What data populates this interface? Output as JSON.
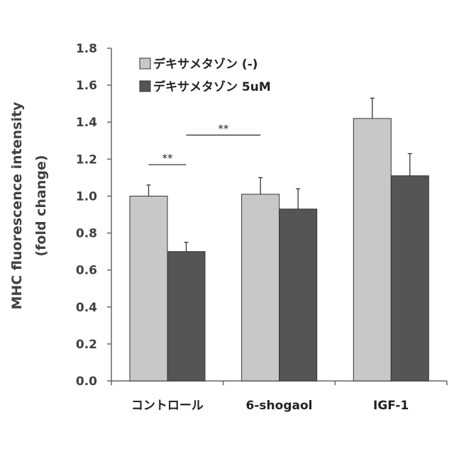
{
  "chart_data": {
    "type": "bar",
    "ylabel_lines": [
      "MHC fluorescence intensity",
      "(fold change)"
    ],
    "xlabel": "",
    "ylim": [
      0,
      1.8
    ],
    "ytick_step": 0.2,
    "ytick_labels": [
      "0.0",
      "0.2",
      "0.4",
      "0.6",
      "0.8",
      "1.0",
      "1.2",
      "1.4",
      "1.6",
      "1.8"
    ],
    "categories": [
      "コントロール",
      "6-shogaol",
      "IGF-1"
    ],
    "series": [
      {
        "name": "デキサメタゾン (-)",
        "color": "#c8c8c8",
        "values": [
          1.0,
          1.01,
          1.42
        ],
        "errors": [
          0.06,
          0.09,
          0.11
        ]
      },
      {
        "name": "デキサメタゾン 5uM",
        "color": "#555555",
        "values": [
          0.7,
          0.93,
          1.11
        ],
        "errors": [
          0.05,
          0.11,
          0.12
        ]
      }
    ],
    "legend_position": "top-left",
    "significance": [
      {
        "label": "**",
        "from": {
          "category": 0,
          "series": 0
        },
        "to": {
          "category": 0,
          "series": 1
        },
        "y": 1.17
      },
      {
        "label": "**",
        "from": {
          "category": 0,
          "series": 1
        },
        "to": {
          "category": 1,
          "series": 0
        },
        "y": 1.33
      }
    ],
    "grid": false
  }
}
